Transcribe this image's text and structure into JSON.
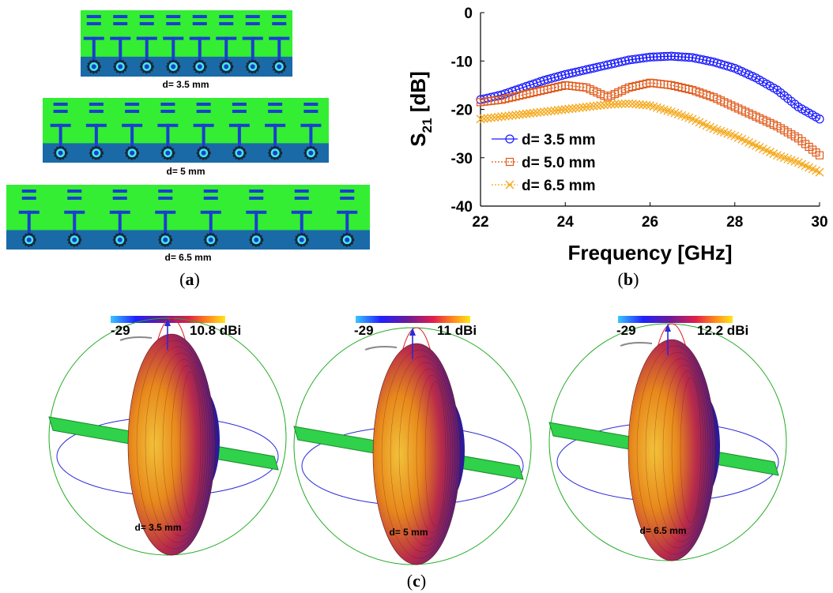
{
  "panel_a": {
    "caption": "a",
    "layouts": [
      {
        "label": "d= 3.5 mm",
        "elements": 8
      },
      {
        "label": "d= 5 mm",
        "elements": 8
      },
      {
        "label": "d= 6.5 mm",
        "elements": 8
      }
    ],
    "colors": {
      "substrate": "#33ee33",
      "ground": "#1a6aa8",
      "element": "#1a3fcf",
      "via": "#44e6e6"
    }
  },
  "panel_b": {
    "caption": "b"
  },
  "panel_c": {
    "caption": "c",
    "patterns": [
      {
        "label": "d= 3.5 mm",
        "scale_min": "-29",
        "scale_max": "10.8 dBi"
      },
      {
        "label": "d= 5 mm",
        "scale_min": "-29",
        "scale_max": "11 dBi"
      },
      {
        "label": "d= 6.5 mm",
        "scale_min": "-29",
        "scale_max": "12.2 dBi"
      }
    ]
  },
  "chart_data": {
    "type": "line",
    "title": "",
    "xlabel": "Frequency [GHz]",
    "ylabel_main": "S",
    "ylabel_sub": "21",
    "ylabel_unit": "[dB]",
    "xlim": [
      22,
      30
    ],
    "ylim": [
      -40,
      0
    ],
    "xticks": [
      22,
      24,
      26,
      28,
      30
    ],
    "yticks": [
      0,
      -10,
      -20,
      -30,
      -40
    ],
    "legend_position": "bottom-left",
    "series": [
      {
        "name": "d= 3.5 mm",
        "color": "#1a1aff",
        "marker": "circle",
        "x": [
          22,
          22.5,
          23,
          23.5,
          24,
          24.5,
          25,
          25.5,
          26,
          26.5,
          27,
          27.5,
          28,
          28.5,
          29,
          29.5,
          30
        ],
        "y": [
          -18,
          -17,
          -15.5,
          -14,
          -12.8,
          -11.8,
          -10.8,
          -9.8,
          -9.2,
          -9,
          -9.3,
          -10.2,
          -11.5,
          -13.5,
          -16,
          -19.5,
          -22
        ]
      },
      {
        "name": "d= 5.0 mm",
        "color": "#e05a1a",
        "marker": "square",
        "x": [
          22,
          22.5,
          23,
          23.5,
          24,
          24.5,
          25,
          25.5,
          26,
          26.5,
          27,
          27.5,
          28,
          28.5,
          29,
          29.5,
          30
        ],
        "y": [
          -18.5,
          -18,
          -17,
          -16,
          -15,
          -15.5,
          -17.5,
          -15.5,
          -14.5,
          -15,
          -16,
          -17.5,
          -19.5,
          -21.5,
          -23.5,
          -26,
          -29.5
        ]
      },
      {
        "name": "d= 6.5 mm",
        "color": "#f5a81a",
        "marker": "x",
        "x": [
          22,
          22.5,
          23,
          23.5,
          24,
          24.5,
          25,
          25.5,
          26,
          26.5,
          27,
          27.5,
          28,
          28.5,
          29,
          29.5,
          30
        ],
        "y": [
          -22,
          -21.5,
          -21,
          -20.5,
          -20,
          -19.5,
          -19,
          -18.8,
          -19.2,
          -20.5,
          -22,
          -24,
          -25.5,
          -27.5,
          -29.5,
          -31,
          -33
        ]
      }
    ]
  }
}
